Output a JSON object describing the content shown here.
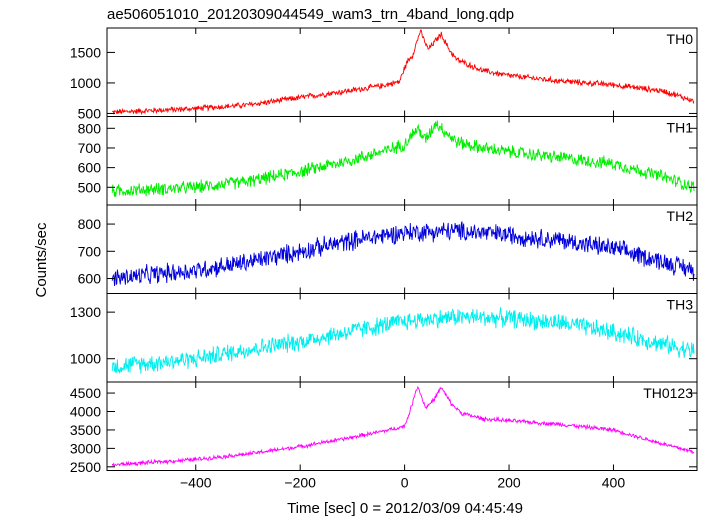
{
  "chart_data": {
    "type": "line",
    "title": "ae506051010_20120309044549_wam3_trn_4band_long.qdp",
    "xlabel": "Time [sec] 0 = 2012/03/09 04:45:49",
    "ylabel": "Counts/sec",
    "xlim": [
      -570,
      560
    ],
    "x_ticks": [
      -400,
      -200,
      0,
      200,
      400
    ],
    "x_tick_labels": [
      "−400",
      "−200",
      "0",
      "200",
      "400"
    ],
    "panels": [
      {
        "name": "TH0",
        "color": "#ff0000",
        "ylim": [
          450,
          1900
        ],
        "y_ticks": [
          500,
          1000,
          1500
        ],
        "series_shape": {
          "x": [
            -560,
            -400,
            -300,
            -200,
            -100,
            -40,
            -10,
            5,
            15,
            30,
            45,
            70,
            85,
            100,
            150,
            200,
            300,
            400,
            500,
            555
          ],
          "y": [
            520,
            580,
            640,
            760,
            880,
            960,
            1020,
            1350,
            1450,
            1850,
            1550,
            1800,
            1550,
            1380,
            1200,
            1120,
            1030,
            970,
            860,
            700
          ]
        },
        "noise": 40
      },
      {
        "name": "TH1",
        "color": "#00ee00",
        "ylim": [
          410,
          860
        ],
        "y_ticks": [
          500,
          600,
          700,
          800
        ],
        "series_shape": {
          "x": [
            -560,
            -400,
            -300,
            -200,
            -100,
            -30,
            0,
            25,
            40,
            60,
            75,
            100,
            150,
            200,
            300,
            400,
            500,
            555
          ],
          "y": [
            480,
            500,
            530,
            580,
            640,
            690,
            720,
            800,
            740,
            830,
            790,
            730,
            700,
            680,
            650,
            620,
            550,
            500
          ]
        },
        "noise": 28
      },
      {
        "name": "TH2",
        "color": "#0000dd",
        "ylim": [
          545,
          870
        ],
        "y_ticks": [
          600,
          700,
          800
        ],
        "series_shape": {
          "x": [
            -560,
            -400,
            -300,
            -200,
            -100,
            0,
            100,
            200,
            300,
            400,
            500,
            555
          ],
          "y": [
            600,
            630,
            660,
            700,
            740,
            770,
            775,
            760,
            740,
            710,
            660,
            630
          ]
        },
        "noise": 30
      },
      {
        "name": "TH3",
        "color": "#00eeee",
        "ylim": [
          850,
          1420
        ],
        "y_ticks": [
          1000,
          1300
        ],
        "series_shape": {
          "x": [
            -560,
            -400,
            -300,
            -200,
            -100,
            0,
            100,
            200,
            300,
            400,
            500,
            555
          ],
          "y": [
            950,
            1000,
            1060,
            1110,
            1180,
            1240,
            1270,
            1260,
            1230,
            1170,
            1090,
            1050
          ]
        },
        "noise": 50
      },
      {
        "name": "TH0123",
        "color": "#ff00ff",
        "ylim": [
          2400,
          4800
        ],
        "y_ticks": [
          2500,
          3000,
          3500,
          4000,
          4500
        ],
        "series_shape": {
          "x": [
            -560,
            -400,
            -300,
            -200,
            -100,
            -30,
            0,
            10,
            25,
            40,
            55,
            70,
            90,
            110,
            150,
            200,
            300,
            400,
            500,
            555
          ],
          "y": [
            2550,
            2700,
            2850,
            3050,
            3300,
            3500,
            3600,
            4000,
            4700,
            4100,
            4300,
            4650,
            4200,
            3950,
            3800,
            3750,
            3650,
            3500,
            3100,
            2900
          ]
        },
        "noise": 45
      }
    ]
  }
}
